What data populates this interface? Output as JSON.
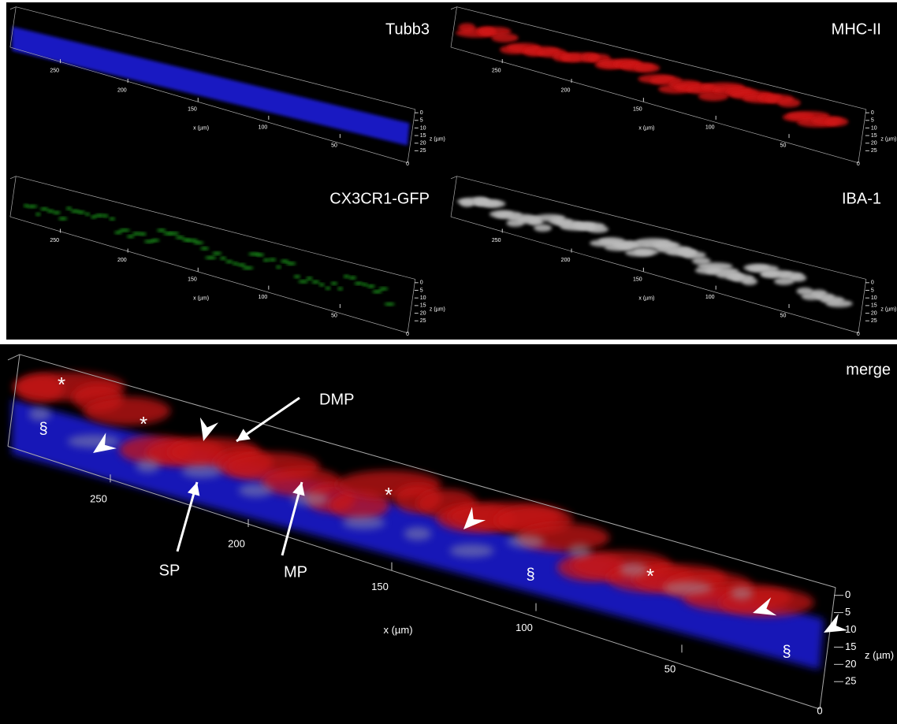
{
  "panels": [
    {
      "label": "Tubb3",
      "x_ticks": [
        "250",
        "200",
        "150",
        "100",
        "50"
      ],
      "x_axis_label": "x (µm)",
      "z_ticks": [
        "0",
        "5",
        "10",
        "15",
        "20",
        "25"
      ],
      "z_axis_label": "z (µm)",
      "z_end": "0"
    },
    {
      "label": "MHC-II",
      "x_ticks": [
        "250",
        "200",
        "150",
        "100",
        "50"
      ],
      "x_axis_label": "x (µm)",
      "z_ticks": [
        "0",
        "5",
        "10",
        "15",
        "20",
        "25"
      ],
      "z_axis_label": "z (µm)",
      "z_end": "0"
    },
    {
      "label": "CX3CR1-GFP",
      "x_ticks": [
        "250",
        "200",
        "150",
        "100",
        "50"
      ],
      "x_axis_label": "x (µm)",
      "z_ticks": [
        "0",
        "5",
        "10",
        "15",
        "20",
        "25"
      ],
      "z_axis_label": "z (µm)",
      "z_end": "0"
    },
    {
      "label": "IBA-1",
      "x_ticks": [
        "250",
        "200",
        "150",
        "100",
        "50"
      ],
      "x_axis_label": "x (µm)",
      "z_ticks": [
        "0",
        "5",
        "10",
        "15",
        "20",
        "25"
      ],
      "z_axis_label": "z (µm)",
      "z_end": "0"
    },
    {
      "label": "merge",
      "x_ticks": [
        "250",
        "200",
        "150",
        "100",
        "50"
      ],
      "x_axis_label": "x (µm)",
      "z_ticks": [
        "0",
        "5",
        "10",
        "15",
        "20",
        "25"
      ],
      "z_axis_label": "z (µm)",
      "z_end": "0"
    }
  ],
  "annotations": [
    "DMP",
    "SP",
    "MP",
    "*",
    "*",
    "*",
    "*",
    "§",
    "§",
    "§"
  ]
}
